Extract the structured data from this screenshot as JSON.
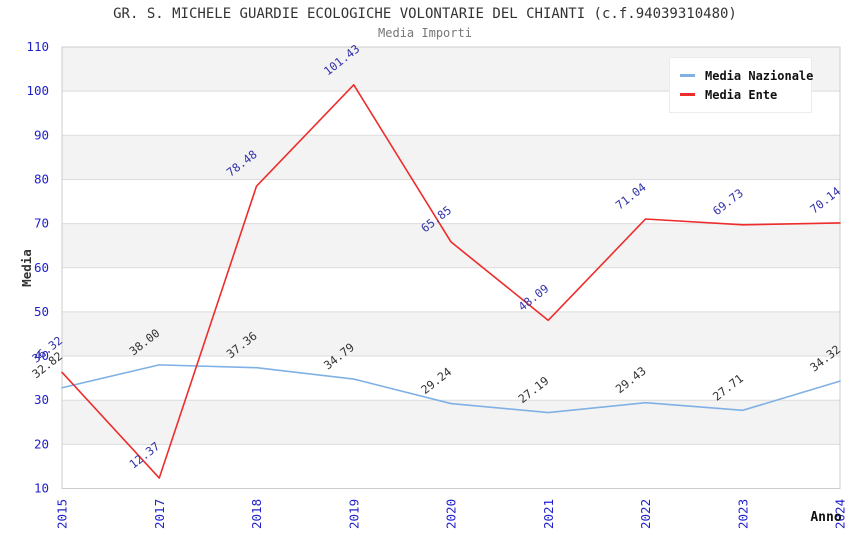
{
  "header": {
    "title": "GR. S. MICHELE GUARDIE ECOLOGICHE VOLONTARIE DEL CHIANTI (c.f.94039310480)",
    "subtitle": "Media Importi"
  },
  "legend": {
    "items": [
      {
        "label": "Media Nazionale",
        "color": "#80b1e4"
      },
      {
        "label": "Media Ente",
        "color": "#ee2c2c"
      }
    ]
  },
  "axes": {
    "ylabel": "Media",
    "xlabel": "Anno",
    "tick_color": "#2222cc",
    "axis_label_color": "#333333"
  },
  "chart_data": {
    "type": "line",
    "title": "GR. S. MICHELE GUARDIE ECOLOGICHE VOLONTARIE DEL CHIANTI (c.f.94039310480)",
    "subtitle": "Media Importi",
    "xlabel": "Anno",
    "ylabel": "Media",
    "x": [
      "2015",
      "2017",
      "2018",
      "2019",
      "2020",
      "2021",
      "2022",
      "2023",
      "2024"
    ],
    "ylim": [
      10,
      110
    ],
    "ytick_step": 10,
    "grid": "horizontal-bands",
    "band_color": "#f3f3f3",
    "gridline_color": "#dcdcdc",
    "border_color": "#cccccc",
    "legend_position": "top-right",
    "series": [
      {
        "name": "Media Nazionale",
        "color": "#80b1e4",
        "label_color": "#333333",
        "values": [
          32.82,
          38.0,
          37.36,
          34.79,
          29.24,
          27.19,
          29.43,
          27.71,
          34.32
        ]
      },
      {
        "name": "Media Ente",
        "color": "#ee2c2c",
        "label_color": "#3333aa",
        "values": [
          36.32,
          12.37,
          78.48,
          101.43,
          65.85,
          48.09,
          71.04,
          69.73,
          70.14
        ]
      }
    ]
  }
}
